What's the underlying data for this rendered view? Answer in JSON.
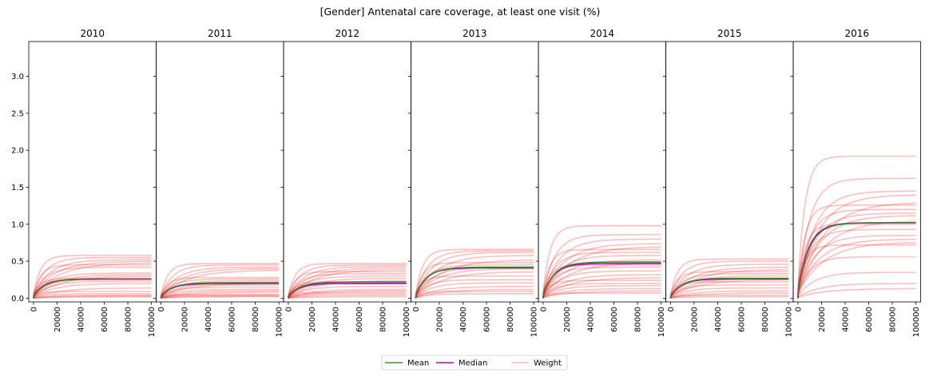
{
  "chart_data": {
    "type": "line",
    "title": "[Gender] Antenatal care coverage, at least one visit (%)",
    "panels": [
      {
        "title": "2010",
        "mean_final": 0.26,
        "median_final": 0.26,
        "weight_finals": [
          0.58,
          0.55,
          0.52,
          0.5,
          0.48,
          0.45,
          0.42,
          0.34,
          0.32,
          0.3,
          0.27,
          0.25,
          0.23,
          0.2,
          0.14,
          0.09,
          0.06,
          0.04,
          0.03,
          0.02
        ]
      },
      {
        "title": "2011",
        "mean_final": 0.21,
        "median_final": 0.2,
        "weight_finals": [
          0.47,
          0.45,
          0.42,
          0.4,
          0.38,
          0.28,
          0.26,
          0.24,
          0.22,
          0.2,
          0.18,
          0.15,
          0.12,
          0.1,
          0.08,
          0.05,
          0.04,
          0.03,
          0.02
        ]
      },
      {
        "title": "2012",
        "mean_final": 0.22,
        "median_final": 0.2,
        "weight_finals": [
          0.47,
          0.45,
          0.43,
          0.41,
          0.39,
          0.36,
          0.33,
          0.3,
          0.27,
          0.24,
          0.22,
          0.2,
          0.16,
          0.12,
          0.1,
          0.08,
          0.06,
          0.04,
          0.02
        ]
      },
      {
        "title": "2013",
        "mean_final": 0.42,
        "median_final": 0.41,
        "weight_finals": [
          0.66,
          0.64,
          0.62,
          0.58,
          0.52,
          0.48,
          0.45,
          0.42,
          0.4,
          0.36,
          0.3,
          0.25,
          0.21,
          0.16,
          0.12,
          0.09,
          0.06
        ]
      },
      {
        "title": "2014",
        "mean_final": 0.49,
        "median_final": 0.47,
        "weight_finals": [
          0.98,
          0.86,
          0.8,
          0.74,
          0.7,
          0.66,
          0.62,
          0.58,
          0.52,
          0.48,
          0.45,
          0.42,
          0.37,
          0.32,
          0.28,
          0.24,
          0.2,
          0.17,
          0.13,
          0.1,
          0.07
        ]
      },
      {
        "title": "2015",
        "mean_final": 0.27,
        "median_final": 0.26,
        "weight_finals": [
          0.53,
          0.5,
          0.46,
          0.42,
          0.39,
          0.36,
          0.33,
          0.3,
          0.27,
          0.25,
          0.22,
          0.18,
          0.14,
          0.1,
          0.07,
          0.04,
          0.02
        ]
      },
      {
        "title": "2016",
        "mean_final": 1.02,
        "median_final": 1.02,
        "weight_finals": [
          1.92,
          1.62,
          1.45,
          1.4,
          1.3,
          1.26,
          1.2,
          1.15,
          1.12,
          1.05,
          1.0,
          0.93,
          0.85,
          0.8,
          0.76,
          0.72,
          0.56,
          0.35,
          0.2,
          0.13
        ]
      }
    ],
    "x_ticks": [
      "0",
      "20000",
      "40000",
      "60000",
      "80000",
      "100000"
    ],
    "y_ticks": [
      "0.0",
      "0.5",
      "1.0",
      "1.5",
      "2.0",
      "2.5",
      "3.0"
    ],
    "xlim": [
      -4000,
      104000
    ],
    "ylim": [
      -0.05,
      3.47
    ],
    "legend": {
      "placement": "bottom-center",
      "items": [
        {
          "label": "Mean",
          "color": "#2ca02c"
        },
        {
          "label": "Median",
          "color": "#bf00bf"
        },
        {
          "label": "Weight",
          "color": "#ff0000"
        }
      ]
    },
    "colors": {
      "mean": "#228b22",
      "median": "#bf00bf",
      "weight": "#ff0000"
    }
  }
}
